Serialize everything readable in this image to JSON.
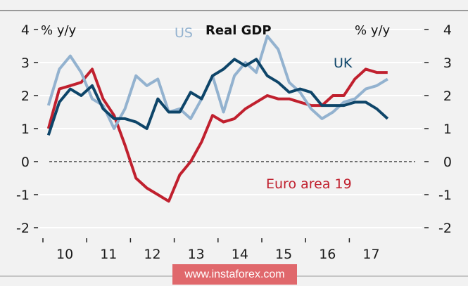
{
  "chart_data": {
    "type": "line",
    "title": "Real GDP",
    "ylabel_left": "% y/y",
    "ylabel_right": "% y/y",
    "xlabel": "",
    "ylim": [
      -2,
      4
    ],
    "yticks": [
      4,
      3,
      2,
      1,
      0,
      -1,
      -2
    ],
    "ytick_labels": [
      "4",
      "3",
      "2",
      "1",
      "0",
      "-1",
      "-2"
    ],
    "x_categories": [
      "10",
      "11",
      "12",
      "13",
      "14",
      "15",
      "16",
      "17"
    ],
    "x_frequency": "quarterly",
    "x_start": "2010Q1",
    "grid": true,
    "zero_line": "dashed",
    "series": [
      {
        "name": "US",
        "color": "#93b2cf",
        "values": [
          1.7,
          2.8,
          3.2,
          2.7,
          1.9,
          1.7,
          1.0,
          1.6,
          2.6,
          2.3,
          2.5,
          1.5,
          1.6,
          1.3,
          1.9,
          2.6,
          1.5,
          2.6,
          3.0,
          2.7,
          3.8,
          3.4,
          2.4,
          2.1,
          1.6,
          1.3,
          1.5,
          1.8,
          1.9,
          2.2,
          2.3,
          2.5
        ]
      },
      {
        "name": "UK",
        "color": "#0e4569",
        "values": [
          0.8,
          1.8,
          2.2,
          2.0,
          2.3,
          1.6,
          1.3,
          1.3,
          1.2,
          1.0,
          1.9,
          1.5,
          1.5,
          2.1,
          1.9,
          2.6,
          2.8,
          3.1,
          2.9,
          3.1,
          2.6,
          2.4,
          2.1,
          2.2,
          2.1,
          1.7,
          1.7,
          1.7,
          1.8,
          1.8,
          1.6,
          1.3
        ]
      },
      {
        "name": "Euro area 19",
        "color": "#c0202e",
        "values": [
          1.0,
          2.2,
          2.3,
          2.4,
          2.8,
          1.9,
          1.4,
          0.5,
          -0.5,
          -0.8,
          -1.0,
          -1.2,
          -0.4,
          0.0,
          0.6,
          1.4,
          1.2,
          1.3,
          1.6,
          1.8,
          2.0,
          1.9,
          1.9,
          1.8,
          1.7,
          1.7,
          2.0,
          2.0,
          2.5,
          2.8,
          2.7,
          2.7
        ]
      }
    ],
    "annotations": [
      {
        "text": "US",
        "series": "US"
      },
      {
        "text": "UK",
        "series": "UK"
      },
      {
        "text": "Euro area 19",
        "series": "Euro area 19"
      }
    ],
    "legend": "inline-labels"
  },
  "watermark": {
    "text": "www.instaforex.com",
    "background": "#e0686c"
  }
}
